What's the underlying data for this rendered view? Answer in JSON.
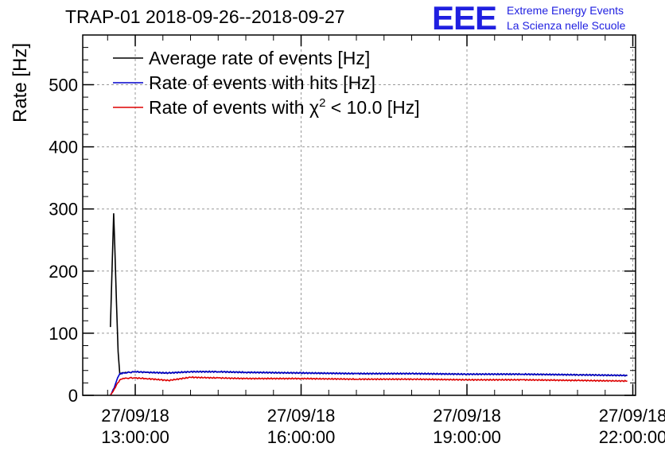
{
  "chart_data": {
    "type": "line",
    "title": "TRAP-01 2018-09-26--2018-09-27",
    "xlabel": "",
    "ylabel": "Rate [Hz]",
    "x_unit": "hours since 27/09/18 00:00:00",
    "xlim": [
      12.05,
      22.05
    ],
    "ylim": [
      0,
      580
    ],
    "yticks": [
      0,
      100,
      200,
      300,
      400,
      500
    ],
    "xticks": [
      {
        "value": 13,
        "date": "27/09/18",
        "time": "13:00:00"
      },
      {
        "value": 16,
        "date": "27/09/18",
        "time": "16:00:00"
      },
      {
        "value": 19,
        "date": "27/09/18",
        "time": "19:00:00"
      },
      {
        "value": 22,
        "date": "27/09/18",
        "time": "22:00:00"
      }
    ],
    "grid": true,
    "legend": {
      "placement": "top-left",
      "entries": [
        {
          "prefix": "Average rate of events [Hz]",
          "sup": "",
          "suffix": ""
        },
        {
          "prefix": "Rate of events with hits [Hz]",
          "sup": "",
          "suffix": ""
        },
        {
          "prefix": "Rate of events with χ",
          "sup": "2",
          "suffix": " < 10.0 [Hz]"
        }
      ]
    },
    "series": [
      {
        "name": "Average rate of events [Hz]",
        "color": "#000000",
        "x": [
          12.55,
          12.58,
          12.61,
          12.63,
          12.66,
          12.69,
          12.72,
          12.76,
          12.82,
          12.9,
          13.0,
          13.2,
          13.6,
          14.0,
          14.5,
          15.0,
          16.0,
          17.0,
          18.0,
          19.0,
          20.0,
          21.0,
          21.9
        ],
        "y": [
          110,
          200,
          293,
          240,
          150,
          70,
          34,
          36,
          37,
          37,
          38,
          37,
          36,
          38,
          38,
          37,
          36,
          35,
          35,
          34,
          34,
          33,
          32
        ]
      },
      {
        "name": "Rate of events with hits [Hz]",
        "color": "#0000cc",
        "x": [
          12.55,
          12.62,
          12.68,
          12.72,
          12.8,
          12.9,
          13.0,
          13.2,
          13.6,
          14.0,
          14.5,
          15.0,
          16.0,
          17.0,
          18.0,
          19.0,
          20.0,
          21.0,
          21.9
        ],
        "y": [
          0,
          12,
          28,
          35,
          36,
          37,
          38,
          37,
          36,
          38,
          38,
          37,
          36,
          35,
          35,
          34,
          34,
          33,
          32
        ]
      },
      {
        "name": "Rate of events with χ² < 10.0 [Hz]",
        "color": "#dd0000",
        "x": [
          12.55,
          12.62,
          12.68,
          12.74,
          12.8,
          12.9,
          13.0,
          13.2,
          13.6,
          14.0,
          14.5,
          15.0,
          16.0,
          17.0,
          18.0,
          19.0,
          20.0,
          21.0,
          21.9
        ],
        "y": [
          0,
          10,
          20,
          26,
          27,
          28,
          28,
          27,
          24,
          29,
          28,
          27,
          27,
          26,
          26,
          25,
          25,
          24,
          23
        ]
      }
    ]
  },
  "logo": {
    "mark": "EEE",
    "line1": "Extreme Energy Events",
    "line2": "La Scienza nelle Scuole",
    "color": "#1f1fe0"
  }
}
